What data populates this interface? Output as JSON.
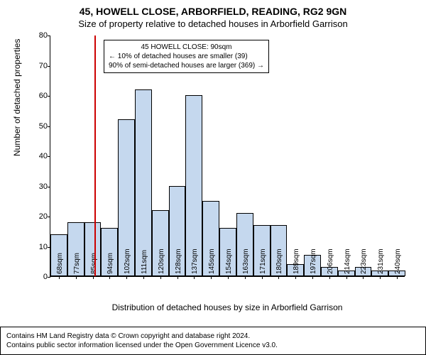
{
  "title": "45, HOWELL CLOSE, ARBORFIELD, READING, RG2 9GN",
  "subtitle": "Size of property relative to detached houses in Arborfield Garrison",
  "chart": {
    "type": "histogram",
    "ylabel": "Number of detached properties",
    "xlabel": "Distribution of detached houses by size in Arborfield Garrison",
    "ylim": [
      0,
      80
    ],
    "ytick_step": 10,
    "bar_fill": "#c5d8ee",
    "bar_stroke": "#000000",
    "background_color": "#ffffff",
    "marker_color": "#cc0000",
    "marker_x_index": 2.6,
    "categories": [
      "68sqm",
      "77sqm",
      "85sqm",
      "94sqm",
      "102sqm",
      "111sqm",
      "120sqm",
      "128sqm",
      "137sqm",
      "145sqm",
      "154sqm",
      "163sqm",
      "171sqm",
      "180sqm",
      "189sqm",
      "197sqm",
      "206sqm",
      "214sqm",
      "223sqm",
      "231sqm",
      "240sqm"
    ],
    "values": [
      14,
      18,
      18,
      16,
      52,
      62,
      22,
      30,
      60,
      25,
      16,
      21,
      17,
      17,
      4,
      7,
      3,
      2,
      3,
      2,
      2
    ]
  },
  "annotation": {
    "line1": "45 HOWELL CLOSE: 90sqm",
    "line2": "← 10% of detached houses are smaller (39)",
    "line3": "90% of semi-detached houses are larger (369) →"
  },
  "footer": {
    "line1": "Contains HM Land Registry data © Crown copyright and database right 2024.",
    "line2": "Contains public sector information licensed under the Open Government Licence v3.0."
  }
}
